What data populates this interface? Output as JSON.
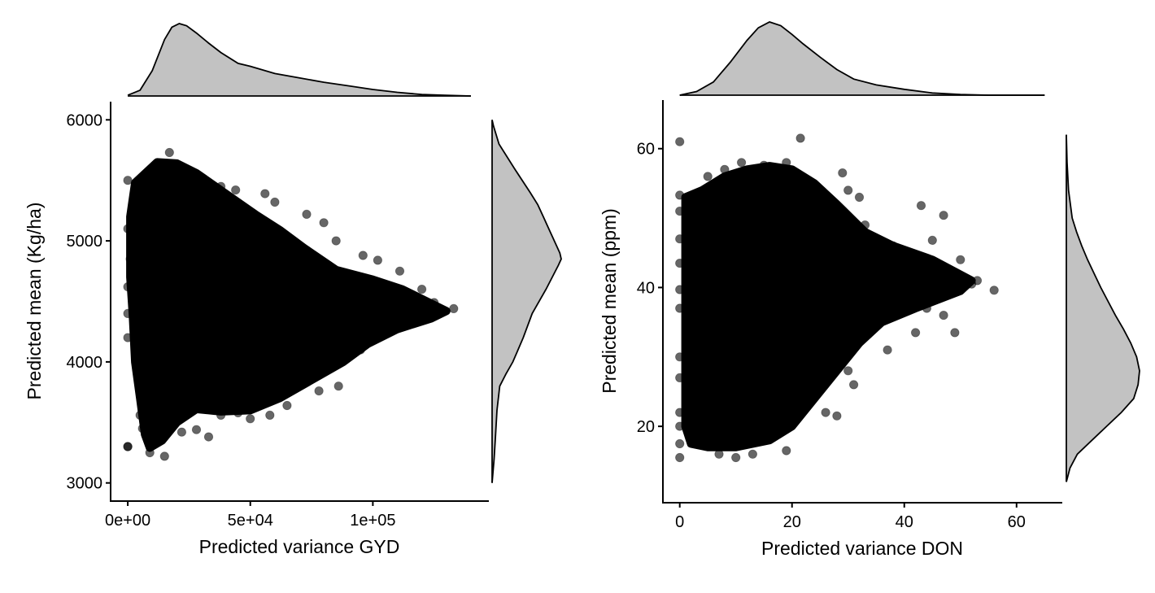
{
  "chart_data": [
    {
      "type": "scatter",
      "panel": "left",
      "title": "",
      "xlabel": "Predicted variance GYD",
      "ylabel": "Predicted mean (Kg/ha)",
      "xlim": [
        -7000,
        147000
      ],
      "ylim": [
        2850,
        6150
      ],
      "xticks": [
        0,
        50000,
        100000
      ],
      "xtick_labels": [
        "0e+00",
        "5e+04",
        "1e+05"
      ],
      "yticks": [
        3000,
        4000,
        5000,
        6000
      ],
      "ytick_labels": [
        "3000",
        "4000",
        "5000",
        "6000"
      ],
      "grid": false,
      "point_color": "#000000",
      "point_alpha": 0.6,
      "density_fill": "#c2c2c2",
      "cloud_outline": [
        [
          3000,
          5480
        ],
        [
          12000,
          5650
        ],
        [
          20000,
          5640
        ],
        [
          28000,
          5560
        ],
        [
          40000,
          5390
        ],
        [
          52000,
          5220
        ],
        [
          62000,
          5090
        ],
        [
          72000,
          4940
        ],
        [
          85000,
          4760
        ],
        [
          100000,
          4680
        ],
        [
          112000,
          4600
        ],
        [
          122000,
          4500
        ],
        [
          130000,
          4420
        ],
        [
          124000,
          4360
        ],
        [
          110000,
          4270
        ],
        [
          98000,
          4150
        ],
        [
          88000,
          4000
        ],
        [
          75000,
          3850
        ],
        [
          62000,
          3700
        ],
        [
          50000,
          3600
        ],
        [
          38000,
          3590
        ],
        [
          28000,
          3610
        ],
        [
          20000,
          3500
        ],
        [
          14000,
          3350
        ],
        [
          9000,
          3290
        ],
        [
          7000,
          3400
        ],
        [
          5000,
          3700
        ],
        [
          3000,
          4000
        ],
        [
          2000,
          4400
        ],
        [
          1000,
          4700
        ],
        [
          1000,
          5200
        ]
      ],
      "outliers": [
        [
          0,
          3300
        ],
        [
          6000,
          3450
        ],
        [
          9000,
          3250
        ],
        [
          13000,
          3370
        ],
        [
          15000,
          3220
        ],
        [
          22000,
          3420
        ],
        [
          28000,
          3440
        ],
        [
          33000,
          3380
        ],
        [
          38000,
          3560
        ],
        [
          45000,
          3580
        ],
        [
          50000,
          3530
        ],
        [
          58000,
          3560
        ],
        [
          65000,
          3640
        ],
        [
          72000,
          3870
        ],
        [
          78000,
          3760
        ],
        [
          86000,
          3800
        ],
        [
          95000,
          4100
        ],
        [
          105000,
          4460
        ],
        [
          115000,
          4520
        ],
        [
          120000,
          4600
        ],
        [
          125000,
          4490
        ],
        [
          133000,
          4440
        ],
        [
          111000,
          4750
        ],
        [
          102000,
          4840
        ],
        [
          96000,
          4880
        ],
        [
          85000,
          5000
        ],
        [
          80000,
          5150
        ],
        [
          73000,
          5220
        ],
        [
          60000,
          5320
        ],
        [
          56000,
          5390
        ],
        [
          44000,
          5420
        ],
        [
          38000,
          5450
        ],
        [
          17000,
          5730
        ],
        [
          0,
          4400
        ],
        [
          0,
          4620
        ],
        [
          0,
          4200
        ],
        [
          0,
          3300
        ],
        [
          1000,
          4850
        ],
        [
          0,
          5500
        ],
        [
          0,
          5100
        ],
        [
          5000,
          3560
        ],
        [
          10000,
          3650
        ]
      ],
      "top_density": {
        "x": [
          0,
          5000,
          10000,
          15000,
          18000,
          21000,
          24000,
          28000,
          33000,
          38000,
          45000,
          50000,
          60000,
          70000,
          80000,
          90000,
          100000,
          110000,
          120000,
          130000,
          140000
        ],
        "density": [
          0.01,
          0.08,
          0.35,
          0.78,
          0.95,
          1.0,
          0.97,
          0.87,
          0.73,
          0.6,
          0.45,
          0.41,
          0.31,
          0.25,
          0.19,
          0.14,
          0.09,
          0.05,
          0.02,
          0.01,
          0.0
        ]
      },
      "right_density": {
        "y": [
          3000,
          3200,
          3400,
          3600,
          3800,
          3900,
          4000,
          4200,
          4400,
          4600,
          4800,
          4850,
          4900,
          5000,
          5100,
          5200,
          5300,
          5400,
          5600,
          5800,
          5950,
          6000
        ],
        "density": [
          0.0,
          0.03,
          0.05,
          0.07,
          0.11,
          0.2,
          0.3,
          0.45,
          0.58,
          0.78,
          0.96,
          1.0,
          0.98,
          0.9,
          0.82,
          0.74,
          0.66,
          0.55,
          0.32,
          0.1,
          0.02,
          0.0
        ]
      }
    },
    {
      "type": "scatter",
      "panel": "right",
      "title": "",
      "xlabel": "Predicted variance DON",
      "ylabel": "Predicted mean (ppm)",
      "xlim": [
        -3,
        68
      ],
      "ylim": [
        9,
        67
      ],
      "xticks": [
        0,
        20,
        40,
        60
      ],
      "xtick_labels": [
        "0",
        "20",
        "40",
        "60"
      ],
      "yticks": [
        20,
        40,
        60
      ],
      "ytick_labels": [
        "20",
        "40",
        "60"
      ],
      "grid": false,
      "point_color": "#000000",
      "point_alpha": 0.6,
      "density_fill": "#c2c2c2",
      "cloud_outline": [
        [
          1,
          53
        ],
        [
          4,
          54
        ],
        [
          8,
          56
        ],
        [
          12,
          57
        ],
        [
          16,
          57.5
        ],
        [
          20,
          57
        ],
        [
          24,
          55
        ],
        [
          28,
          52
        ],
        [
          33,
          48
        ],
        [
          38,
          46
        ],
        [
          45,
          44
        ],
        [
          52,
          41
        ],
        [
          50,
          39.5
        ],
        [
          42,
          37
        ],
        [
          36,
          35
        ],
        [
          32,
          32
        ],
        [
          28,
          28
        ],
        [
          24,
          24
        ],
        [
          20,
          20
        ],
        [
          16,
          18
        ],
        [
          10,
          17
        ],
        [
          5,
          17
        ],
        [
          2,
          17.5
        ],
        [
          1,
          20
        ],
        [
          1,
          26
        ],
        [
          1,
          33
        ],
        [
          1,
          40
        ],
        [
          1,
          46
        ]
      ],
      "outliers": [
        [
          0,
          61
        ],
        [
          21.5,
          61.5
        ],
        [
          0,
          53.3
        ],
        [
          0,
          51
        ],
        [
          0,
          47
        ],
        [
          0,
          43.5
        ],
        [
          0,
          39.7
        ],
        [
          0,
          37
        ],
        [
          0,
          30
        ],
        [
          0,
          27
        ],
        [
          0,
          22
        ],
        [
          0,
          20
        ],
        [
          0,
          17.5
        ],
        [
          0,
          15.5
        ],
        [
          3,
          53
        ],
        [
          2,
          49
        ],
        [
          5,
          56
        ],
        [
          8,
          57
        ],
        [
          11,
          58
        ],
        [
          15,
          57.6
        ],
        [
          19,
          58
        ],
        [
          29,
          56.5
        ],
        [
          30,
          54
        ],
        [
          32,
          53
        ],
        [
          43,
          51.8
        ],
        [
          47,
          50.4
        ],
        [
          33,
          49
        ],
        [
          38,
          46
        ],
        [
          45,
          46.8
        ],
        [
          50,
          44
        ],
        [
          53,
          41
        ],
        [
          56,
          39.6
        ],
        [
          52,
          40.5
        ],
        [
          40,
          43
        ],
        [
          44,
          37
        ],
        [
          47,
          36
        ],
        [
          42,
          33.5
        ],
        [
          49,
          33.5
        ],
        [
          37,
          31
        ],
        [
          30,
          28
        ],
        [
          31,
          26
        ],
        [
          26,
          22
        ],
        [
          28,
          21.5
        ],
        [
          4,
          18
        ],
        [
          7,
          16
        ],
        [
          10,
          15.5
        ],
        [
          13,
          16
        ],
        [
          19,
          16.5
        ]
      ],
      "top_density": {
        "x": [
          0,
          3,
          6,
          9,
          12,
          14,
          16,
          18,
          20,
          22,
          25,
          28,
          31,
          35,
          40,
          45,
          50,
          55,
          60,
          65
        ],
        "density": [
          0.0,
          0.05,
          0.18,
          0.45,
          0.75,
          0.92,
          1.0,
          0.95,
          0.83,
          0.7,
          0.52,
          0.35,
          0.22,
          0.14,
          0.08,
          0.03,
          0.01,
          0.0,
          0.0,
          0.0
        ]
      },
      "right_density": {
        "y": [
          12,
          14,
          16,
          18,
          20,
          22,
          24,
          26,
          28,
          30,
          32,
          34,
          36,
          38,
          40,
          42,
          44,
          46,
          48,
          50,
          54,
          58,
          62
        ],
        "density": [
          0.0,
          0.05,
          0.15,
          0.35,
          0.55,
          0.75,
          0.92,
          0.98,
          1.0,
          0.96,
          0.88,
          0.78,
          0.67,
          0.57,
          0.47,
          0.38,
          0.29,
          0.21,
          0.14,
          0.08,
          0.03,
          0.01,
          0.0
        ]
      }
    }
  ]
}
